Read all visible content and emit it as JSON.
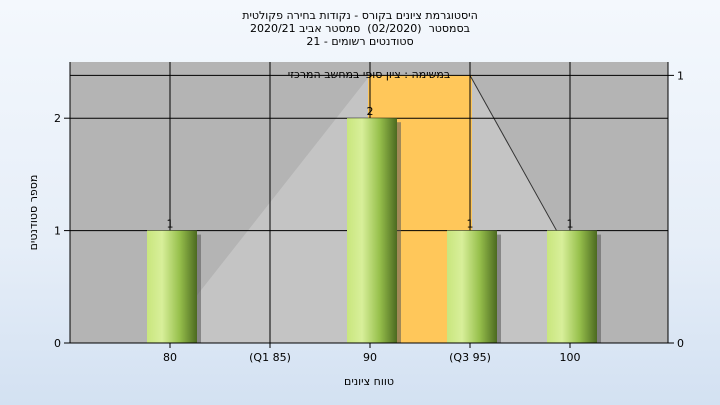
{
  "header": {
    "title": "היסטוגרמת ציונים בקורס - נקודות בחירה פקולטית",
    "line2": "בסמסטר  (02/2020)  סמסטר אביב 2020/21",
    "line3": "סטודנטים רשומים - 21"
  },
  "chart_data": {
    "type": "bar",
    "title": "היסטוגרמת ציונים בקורס - נקודות בחירה פקולטית",
    "subtitle": "במשימה : ציון סופי במחשב המרכזי",
    "xlabel": "טווח ציונים",
    "ylabel": "מספר סטודנטים",
    "categories": [
      "80",
      "(Q1 85)",
      "90",
      "(Q3 95)",
      "100"
    ],
    "values": [
      1,
      0,
      2,
      1,
      1
    ],
    "data_labels": [
      "1",
      "",
      "2",
      "1",
      "1"
    ],
    "ylim": [
      0,
      2.5
    ],
    "y_ticks": [
      "0",
      "1",
      "2"
    ],
    "y2_ticks": [
      "0",
      "1"
    ],
    "y2lim": [
      0,
      1.05
    ],
    "grid": true,
    "colors": {
      "plot_background": "#b4b4b4",
      "bar_light": "#d6ee96",
      "bar_mid": "#98c24a",
      "bar_dark": "#4f6e22",
      "iqr_band": "#ffc75a",
      "distribution_area": "#c4c4c4"
    },
    "iqr_range": [
      "(Q1 85)",
      "(Q3 95)"
    ],
    "distribution_curve": [
      {
        "x": "80",
        "y": 0.05
      },
      {
        "x": "90",
        "y": 1
      },
      {
        "x": "(Q3 95)",
        "y": 1
      },
      {
        "x": "100",
        "y": 0.33
      }
    ]
  }
}
